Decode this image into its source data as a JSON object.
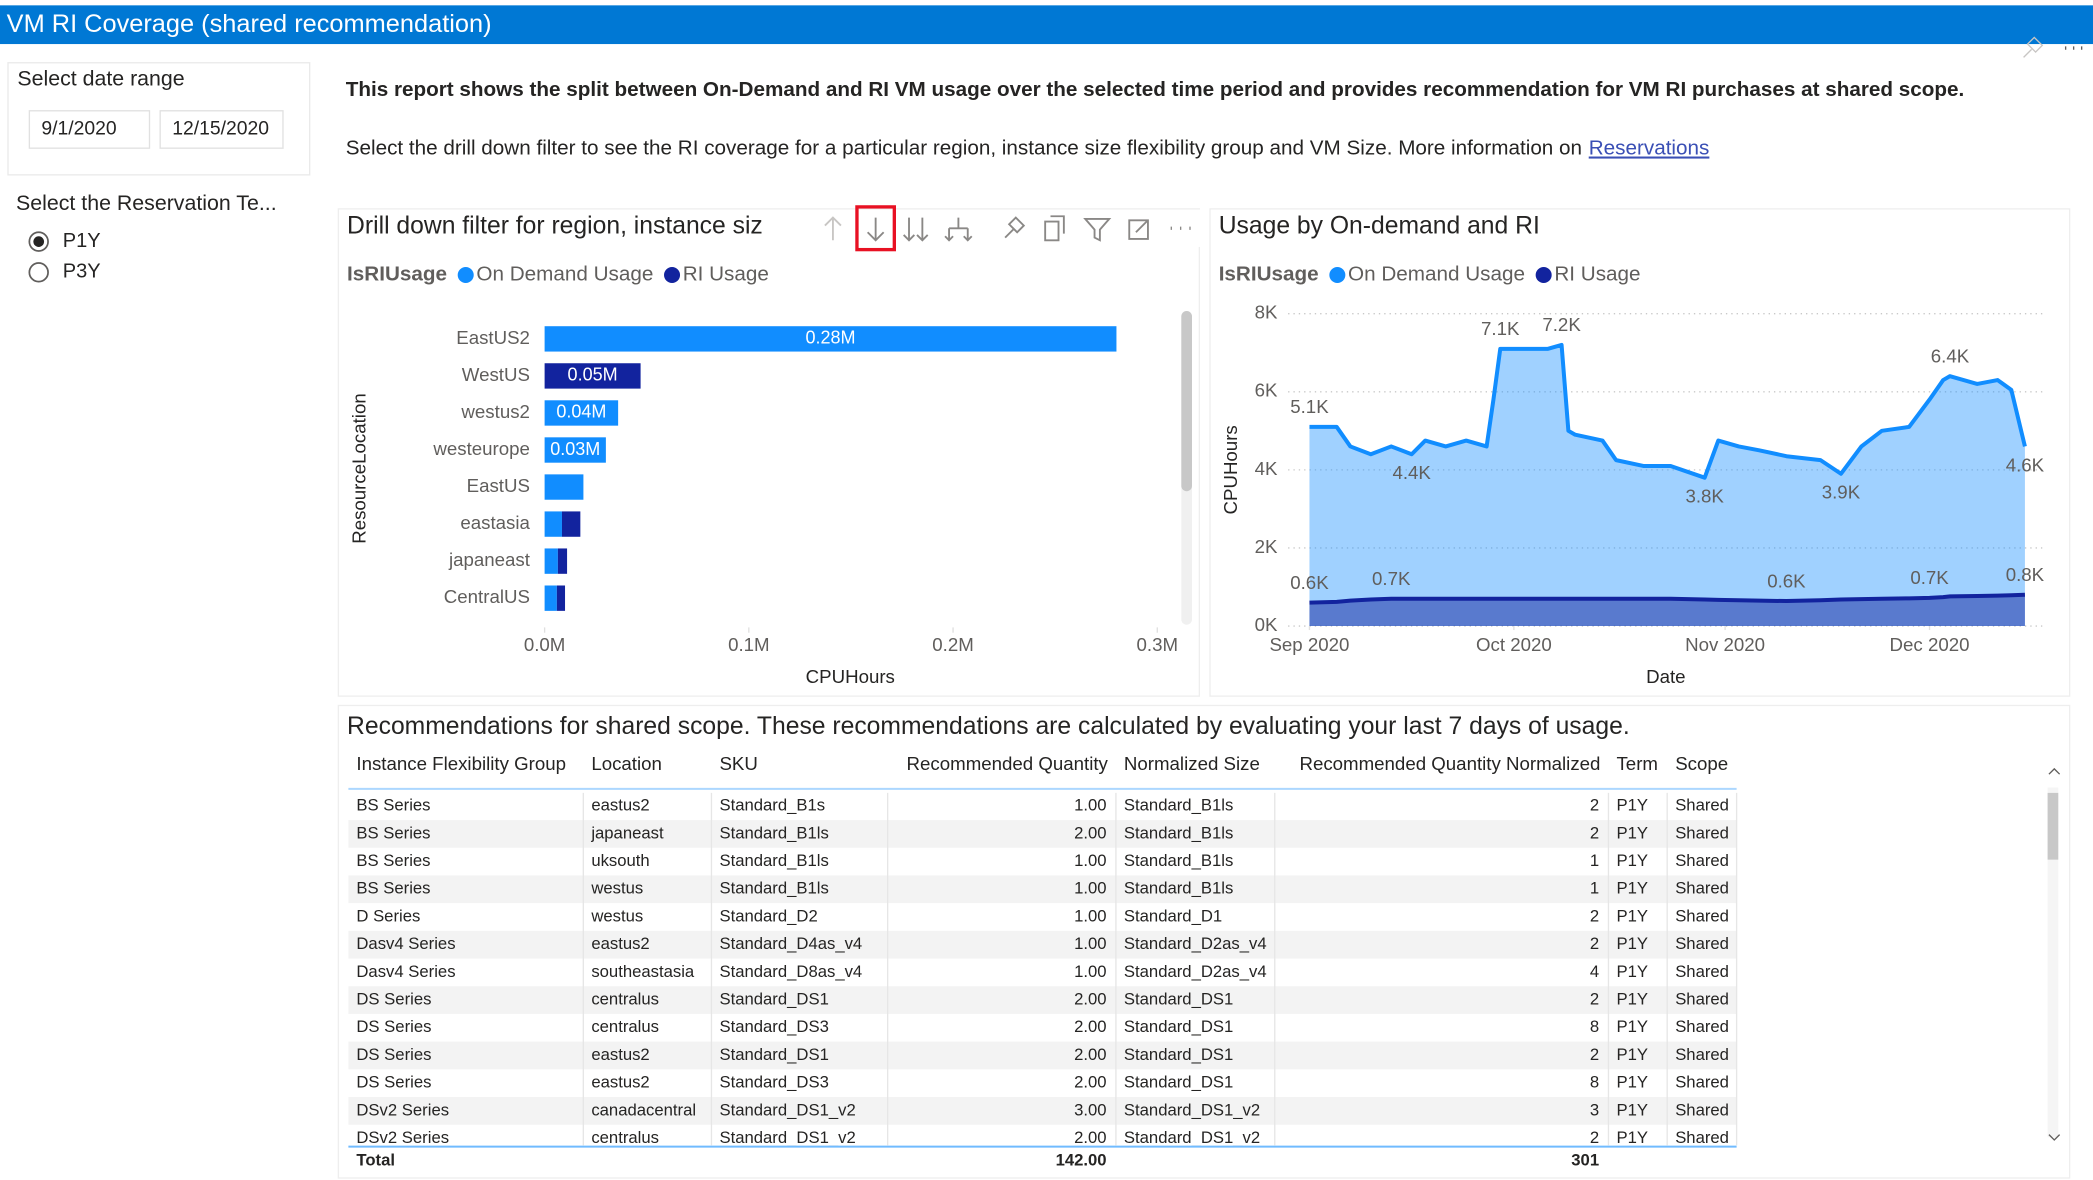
{
  "header": {
    "title": "VM RI Coverage (shared recommendation)"
  },
  "filters": {
    "date_range": {
      "label": "Select date range",
      "start": "9/1/2020",
      "end": "12/15/2020"
    },
    "term": {
      "label": "Select the Reservation Te...",
      "options": [
        "P1Y",
        "P3Y"
      ],
      "selected": 0
    }
  },
  "intro": {
    "summary": "This report shows the split between On-Demand and RI VM usage over the selected time period and provides recommendation for VM RI purchases at shared scope.",
    "details": "Select the drill down filter to see the RI coverage for a particular region, instance size flexibility group and VM Size. More information on",
    "link": "Reservations"
  },
  "chart_data": [
    {
      "type": "bar",
      "orientation": "horizontal",
      "stacked": true,
      "title": "Drill down filter for region, instance siz",
      "legend_title": "IsRIUsage",
      "y_label": "ResourceLocation",
      "x_label": "CPUHours",
      "categories": [
        "EastUS2",
        "WestUS",
        "westus2",
        "westeurope",
        "EastUS",
        "eastasia",
        "japaneast",
        "CentralUS"
      ],
      "series": [
        {
          "name": "On Demand Usage",
          "color": "#118DFF",
          "values": [
            280000,
            0,
            36000,
            30000,
            19000,
            8500,
            6500,
            6000
          ],
          "value_labels": [
            "0.28M",
            null,
            "0.04M",
            "0.03M",
            null,
            null,
            null,
            null
          ]
        },
        {
          "name": "RI Usage",
          "color": "#12239E",
          "values": [
            0,
            47000,
            0,
            0,
            0,
            9000,
            4500,
            4000
          ],
          "value_labels": [
            null,
            "0.05M",
            null,
            null,
            null,
            null,
            null,
            null
          ]
        }
      ],
      "xlim": [
        0,
        300000
      ],
      "xticks": [
        {
          "value": 0,
          "label": "0.0M"
        },
        {
          "value": 100000,
          "label": "0.1M"
        },
        {
          "value": 200000,
          "label": "0.2M"
        },
        {
          "value": 300000,
          "label": "0.3M"
        }
      ]
    },
    {
      "type": "area",
      "title": "Usage by On-demand and RI",
      "legend_title": "IsRIUsage",
      "y_label": "CPUHours",
      "x_label": "Date",
      "x": [
        0,
        4,
        6,
        9,
        12,
        15,
        17,
        20,
        23,
        26,
        27,
        28,
        32,
        35,
        37,
        38,
        39,
        43,
        45,
        49,
        53,
        58,
        60,
        63,
        66,
        70,
        75,
        78,
        81,
        84,
        88,
        91,
        93,
        94,
        98,
        101,
        103,
        105
      ],
      "series": [
        {
          "name": "On Demand Usage",
          "color": "#118DFF",
          "values": [
            5100,
            5100,
            4600,
            4400,
            4600,
            4400,
            4750,
            4600,
            4750,
            4600,
            5800,
            7100,
            7100,
            7100,
            7200,
            5000,
            4900,
            4750,
            4250,
            4100,
            4100,
            3800,
            4750,
            4600,
            4500,
            4350,
            4250,
            3900,
            4600,
            5000,
            5100,
            5800,
            6300,
            6400,
            6200,
            6300,
            6050,
            4600
          ],
          "value_labels": [
            "5.1K",
            null,
            null,
            null,
            null,
            "4.4K",
            null,
            null,
            null,
            null,
            null,
            "7.1K",
            null,
            null,
            "7.2K",
            null,
            null,
            null,
            null,
            null,
            null,
            "3.8K",
            null,
            null,
            null,
            null,
            null,
            "3.9K",
            null,
            null,
            null,
            null,
            null,
            "6.4K",
            null,
            null,
            null,
            "4.6K"
          ]
        },
        {
          "name": "RI Usage",
          "color": "#12239E",
          "values": [
            600,
            620,
            650,
            680,
            700,
            700,
            700,
            700,
            700,
            700,
            700,
            700,
            700,
            700,
            700,
            700,
            700,
            700,
            700,
            700,
            700,
            680,
            670,
            660,
            650,
            640,
            660,
            680,
            690,
            700,
            710,
            720,
            740,
            760,
            770,
            780,
            790,
            800
          ],
          "value_labels": [
            "0.6K",
            null,
            null,
            null,
            "0.7K",
            null,
            null,
            null,
            null,
            null,
            null,
            null,
            null,
            null,
            null,
            null,
            null,
            null,
            null,
            null,
            null,
            null,
            null,
            null,
            null,
            "0.6K",
            null,
            null,
            null,
            null,
            null,
            "0.7K",
            null,
            null,
            null,
            null,
            null,
            "0.8K"
          ]
        }
      ],
      "xlim": [
        0,
        105
      ],
      "xticks": [
        {
          "value": 0,
          "label": "Sep 2020"
        },
        {
          "value": 30,
          "label": "Oct 2020"
        },
        {
          "value": 61,
          "label": "Nov 2020"
        },
        {
          "value": 91,
          "label": "Dec 2020"
        }
      ],
      "ylim": [
        0,
        8000
      ],
      "yticks": [
        {
          "value": 0,
          "label": "0K"
        },
        {
          "value": 2000,
          "label": "2K"
        },
        {
          "value": 4000,
          "label": "4K"
        },
        {
          "value": 6000,
          "label": "6K"
        },
        {
          "value": 8000,
          "label": "8K"
        }
      ],
      "grid": true
    }
  ],
  "table": {
    "title": "Recommendations for shared scope. These recommendations are calculated by evaluating your last 7 days of usage.",
    "columns": [
      "Instance Flexibility Group",
      "Location",
      "SKU",
      "Recommended Quantity",
      "Normalized Size",
      "Recommended Quantity Normalized",
      "Term",
      "Scope"
    ],
    "rows": [
      [
        "BS Series",
        "eastus2",
        "Standard_B1s",
        "1.00",
        "Standard_B1ls",
        "2",
        "P1Y",
        "Shared"
      ],
      [
        "BS Series",
        "japaneast",
        "Standard_B1ls",
        "2.00",
        "Standard_B1ls",
        "2",
        "P1Y",
        "Shared"
      ],
      [
        "BS Series",
        "uksouth",
        "Standard_B1ls",
        "1.00",
        "Standard_B1ls",
        "1",
        "P1Y",
        "Shared"
      ],
      [
        "BS Series",
        "westus",
        "Standard_B1ls",
        "1.00",
        "Standard_B1ls",
        "1",
        "P1Y",
        "Shared"
      ],
      [
        "D Series",
        "westus",
        "Standard_D2",
        "1.00",
        "Standard_D1",
        "2",
        "P1Y",
        "Shared"
      ],
      [
        "Dasv4 Series",
        "eastus2",
        "Standard_D4as_v4",
        "1.00",
        "Standard_D2as_v4",
        "2",
        "P1Y",
        "Shared"
      ],
      [
        "Dasv4 Series",
        "southeastasia",
        "Standard_D8as_v4",
        "1.00",
        "Standard_D2as_v4",
        "4",
        "P1Y",
        "Shared"
      ],
      [
        "DS Series",
        "centralus",
        "Standard_DS1",
        "2.00",
        "Standard_DS1",
        "2",
        "P1Y",
        "Shared"
      ],
      [
        "DS Series",
        "centralus",
        "Standard_DS3",
        "2.00",
        "Standard_DS1",
        "8",
        "P1Y",
        "Shared"
      ],
      [
        "DS Series",
        "eastus2",
        "Standard_DS1",
        "2.00",
        "Standard_DS1",
        "2",
        "P1Y",
        "Shared"
      ],
      [
        "DS Series",
        "eastus2",
        "Standard_DS3",
        "2.00",
        "Standard_DS1",
        "8",
        "P1Y",
        "Shared"
      ],
      [
        "DSv2 Series",
        "canadacentral",
        "Standard_DS1_v2",
        "3.00",
        "Standard_DS1_v2",
        "3",
        "P1Y",
        "Shared"
      ],
      [
        "DSv2 Series",
        "centralus",
        "Standard_DS1_v2",
        "2.00",
        "Standard_DS1_v2",
        "2",
        "P1Y",
        "Shared"
      ]
    ],
    "total": {
      "label": "Total",
      "recommended_quantity": "142.00",
      "recommended_quantity_normalized": "301"
    }
  }
}
